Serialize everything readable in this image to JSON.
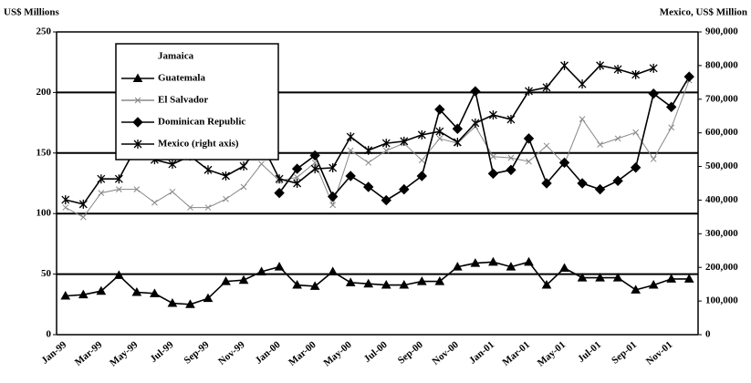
{
  "chart_data": {
    "type": "line",
    "y_label": "US$ Millions",
    "y2_label": "Mexico, US$ Million",
    "categories": [
      "Jan-99",
      null,
      "Mar-99",
      null,
      "May-99",
      null,
      "Jul-99",
      null,
      "Sep-99",
      null,
      "Nov-99",
      null,
      "Jan-00",
      null,
      "Mar-00",
      null,
      "May-00",
      null,
      "Jul-00",
      null,
      "Sep-00",
      null,
      "Nov-00",
      null,
      "Jan-01",
      null,
      "Mar-01",
      null,
      "May-01",
      null,
      "Jul-01",
      null,
      "Sep-01",
      null,
      "Nov-01",
      null
    ],
    "ylim": [
      0,
      250
    ],
    "yticks": [
      0,
      50,
      100,
      150,
      200,
      250
    ],
    "y2lim": [
      0,
      900000
    ],
    "y2ticks": [
      0,
      {
        "value": 100000,
        "label": "100,000"
      },
      {
        "value": 200000,
        "label": "200,000"
      },
      {
        "value": 300000,
        "label": "300,000"
      },
      {
        "value": 400000,
        "label": "400,000"
      },
      {
        "value": 500000,
        "label": "500,000"
      },
      {
        "value": 600000,
        "label": "600,000"
      },
      {
        "value": 700000,
        "label": "700,000"
      },
      {
        "value": 800000,
        "label": "800,000"
      },
      {
        "value": 900000,
        "label": "900,000"
      }
    ],
    "grid": true,
    "legend": "upper left",
    "series": [
      {
        "name": "Jamaica",
        "color": "#ffffff",
        "marker": "none",
        "values": [
          48,
          48,
          48,
          48,
          48,
          48,
          48,
          48,
          48,
          48,
          48,
          48,
          48,
          48,
          48,
          48,
          48,
          48,
          48,
          48,
          48,
          48,
          48,
          48,
          48,
          48,
          48,
          48,
          48,
          48,
          48,
          48,
          48,
          48,
          48,
          48
        ]
      },
      {
        "name": "Guatemala",
        "color": "#000000",
        "marker": "triangle",
        "values": [
          32,
          33,
          36,
          49,
          35,
          34,
          26,
          25,
          30,
          44,
          45,
          52,
          56,
          41,
          40,
          52,
          43,
          42,
          41,
          41,
          44,
          44,
          56,
          59,
          60,
          56,
          60,
          41,
          55,
          47,
          47,
          47,
          37,
          41,
          46,
          46
        ]
      },
      {
        "name": "El Salvador",
        "color": "#888888",
        "marker": "x",
        "values": [
          105,
          97,
          117,
          120,
          120,
          109,
          118,
          105,
          105,
          112,
          122,
          141,
          127,
          130,
          142,
          107,
          152,
          142,
          152,
          158,
          144,
          162,
          158,
          172,
          147,
          146,
          143,
          156,
          141,
          178,
          157,
          162,
          167,
          145,
          171,
          210
        ]
      },
      {
        "name": "Dominican Republic",
        "color": "#000000",
        "marker": "diamond",
        "values": [
          null,
          null,
          null,
          null,
          null,
          null,
          null,
          null,
          null,
          null,
          null,
          null,
          117,
          137,
          148,
          114,
          131,
          122,
          111,
          120,
          131,
          186,
          170,
          201,
          133,
          136,
          162,
          125,
          142,
          125,
          120,
          127,
          138,
          199,
          188,
          213
        ]
      },
      {
        "name": "Mexico (right axis)",
        "color": "#000000",
        "marker": "star",
        "axis": "y2",
        "values": [
          401000,
          388000,
          463000,
          463000,
          561000,
          520000,
          507000,
          531000,
          490000,
          472000,
          501000,
          569000,
          463000,
          450000,
          493000,
          496000,
          588000,
          548000,
          569000,
          575000,
          594000,
          604000,
          572000,
          629000,
          653000,
          640000,
          724000,
          735000,
          800000,
          745000,
          800000,
          789000,
          773000,
          792000,
          null,
          null
        ]
      }
    ]
  }
}
